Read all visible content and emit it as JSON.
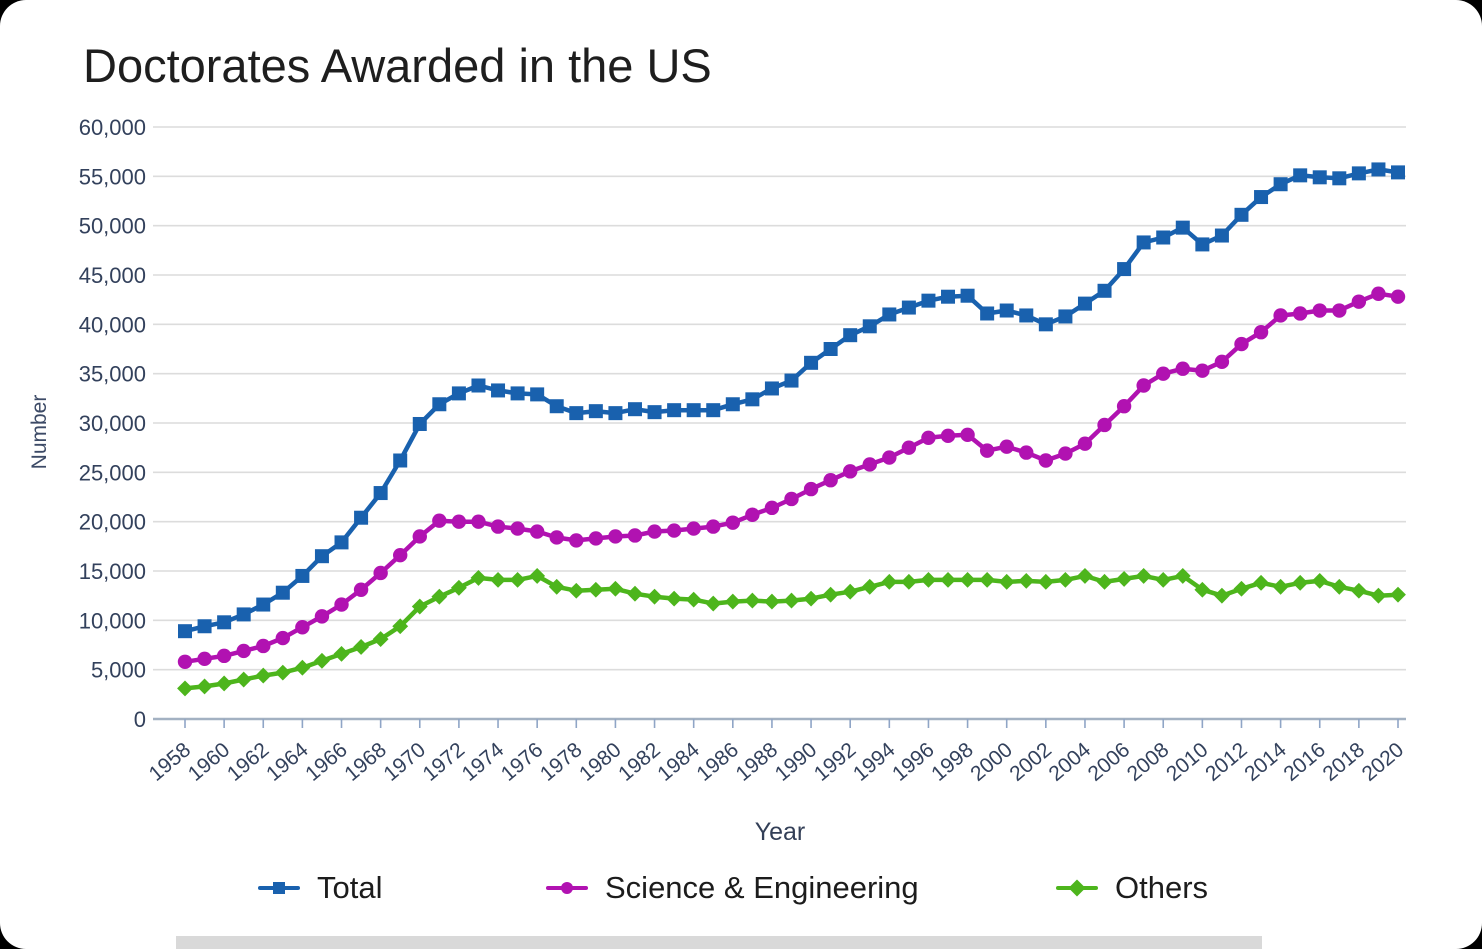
{
  "title": "Doctorates Awarded in the US",
  "y_axis": {
    "title": "Number"
  },
  "x_axis": {
    "title": "Year"
  },
  "colors": {
    "background": "#ffffff",
    "gridline": "#dcdcdc",
    "axis_line": "#a3b1c2",
    "tick_mark": "#8fa5c6",
    "tick_label": "#33415c",
    "title_text": "#1e1e1e"
  },
  "chart_data": {
    "type": "line",
    "title": "Doctorates Awarded in the US",
    "xlabel": "Year",
    "ylabel": "Number",
    "ylim": [
      0,
      60000
    ],
    "y_tick_interval": 5000,
    "x_label_step": 2,
    "grid": true,
    "legend_position": "bottom",
    "x": [
      1958,
      1959,
      1960,
      1961,
      1962,
      1963,
      1964,
      1965,
      1966,
      1967,
      1968,
      1969,
      1970,
      1971,
      1972,
      1973,
      1974,
      1975,
      1976,
      1977,
      1978,
      1979,
      1980,
      1981,
      1982,
      1983,
      1984,
      1985,
      1986,
      1987,
      1988,
      1989,
      1990,
      1991,
      1992,
      1993,
      1994,
      1995,
      1996,
      1997,
      1998,
      1999,
      2000,
      2001,
      2002,
      2003,
      2004,
      2005,
      2006,
      2007,
      2008,
      2009,
      2010,
      2011,
      2012,
      2013,
      2014,
      2015,
      2016,
      2017,
      2018,
      2019,
      2020
    ],
    "series": [
      {
        "name": "Total",
        "color": "#1961ae",
        "marker": "square",
        "values": [
          8900,
          9400,
          9800,
          10600,
          11600,
          12800,
          14500,
          16500,
          17900,
          20400,
          22900,
          26200,
          29900,
          31900,
          33000,
          33800,
          33300,
          33000,
          32900,
          31700,
          31000,
          31200,
          31000,
          31400,
          31100,
          31300,
          31300,
          31300,
          31900,
          32400,
          33500,
          34300,
          36100,
          37500,
          38900,
          39800,
          41000,
          41700,
          42400,
          42800,
          42900,
          41100,
          41400,
          40900,
          40000,
          40800,
          42100,
          43400,
          45600,
          48300,
          48800,
          49800,
          48100,
          49000,
          51100,
          52900,
          54200,
          55100,
          54900,
          54800,
          55300,
          55700,
          55400
        ]
      },
      {
        "name": "Science & Engineering",
        "color": "#b112b1",
        "marker": "circle",
        "values": [
          5800,
          6100,
          6400,
          6900,
          7400,
          8200,
          9300,
          10400,
          11600,
          13100,
          14800,
          16600,
          18500,
          20100,
          20000,
          20000,
          19500,
          19300,
          19000,
          18400,
          18100,
          18300,
          18500,
          18600,
          19000,
          19100,
          19300,
          19500,
          19900,
          20700,
          21400,
          22300,
          23300,
          24200,
          25100,
          25800,
          26500,
          27500,
          28500,
          28700,
          28800,
          27200,
          27600,
          27000,
          26200,
          26900,
          27900,
          29800,
          31700,
          33800,
          35000,
          35500,
          35300,
          36200,
          38000,
          39200,
          40900,
          41100,
          41400,
          41400,
          42300,
          43100,
          42800
        ]
      },
      {
        "name": "Others",
        "color": "#4db51c",
        "marker": "diamond",
        "values": [
          3100,
          3300,
          3600,
          4000,
          4400,
          4700,
          5200,
          5900,
          6600,
          7300,
          8100,
          9400,
          11400,
          12400,
          13300,
          14300,
          14100,
          14100,
          14500,
          13400,
          13000,
          13100,
          13200,
          12700,
          12400,
          12200,
          12100,
          11700,
          11900,
          12000,
          11900,
          12000,
          12200,
          12600,
          12900,
          13400,
          13900,
          13900,
          14100,
          14100,
          14100,
          14100,
          13900,
          14000,
          13900,
          14100,
          14500,
          13900,
          14200,
          14500,
          14100,
          14500,
          13100,
          12500,
          13200,
          13800,
          13400,
          13800,
          14000,
          13400,
          13000,
          12500,
          12600
        ]
      }
    ]
  }
}
